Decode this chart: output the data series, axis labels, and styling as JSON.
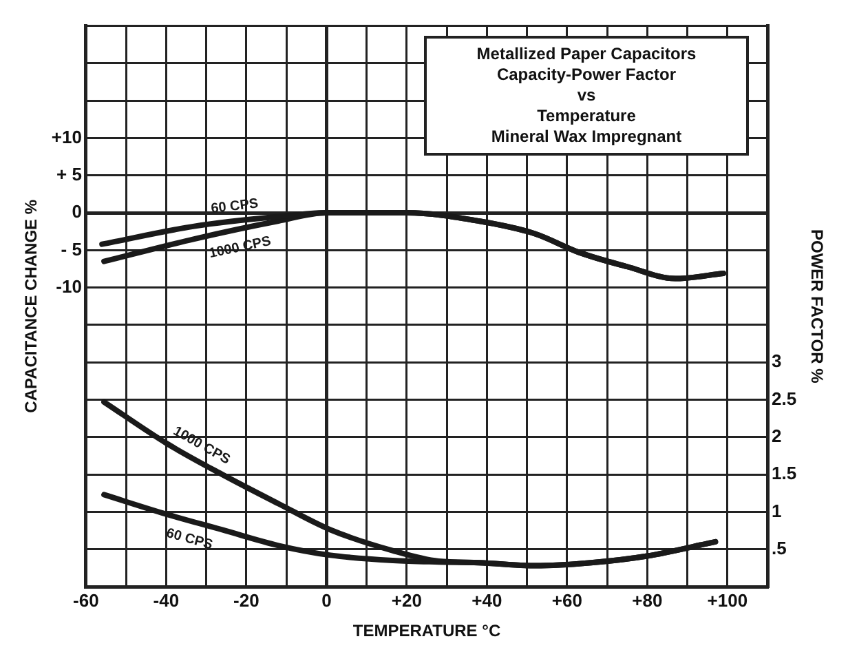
{
  "chart_data": {
    "type": "line",
    "title": "Metallized Paper Capacitors\nCapacity-Power Factor\nvs\nTemperature",
    "subtitle": "Mineral Wax Impregnant",
    "xlabel": "TEMPERATURE °C",
    "ylabel": "CAPACITANCE CHANGE %",
    "y2label": "POWER FACTOR %",
    "xlim": [
      -60,
      110
    ],
    "xticks": [
      -60,
      {
        "value": -50,
        "label": null
      },
      -40,
      {
        "value": -30,
        "label": null
      },
      -20,
      {
        "value": -10,
        "label": null
      },
      0,
      {
        "value": 10,
        "label": null
      },
      {
        "value": 20,
        "label": "+20"
      },
      {
        "value": 30,
        "label": null
      },
      {
        "value": 40,
        "label": "+40"
      },
      {
        "value": 50,
        "label": null
      },
      {
        "value": 60,
        "label": "+60"
      },
      {
        "value": 70,
        "label": null
      },
      {
        "value": 80,
        "label": "+80"
      },
      {
        "value": 90,
        "label": null
      },
      {
        "value": 100,
        "label": "+100"
      }
    ],
    "ylim": [
      -50,
      25
    ],
    "yticks": [
      {
        "value": -50,
        "label": null
      },
      {
        "value": -45,
        "label": null
      },
      {
        "value": -40,
        "label": null
      },
      {
        "value": -35,
        "label": null
      },
      {
        "value": -30,
        "label": null
      },
      {
        "value": -25,
        "label": null
      },
      {
        "value": -20,
        "label": null
      },
      {
        "value": -15,
        "label": null
      },
      -10,
      {
        "value": -5,
        "label": "- 5"
      },
      0,
      {
        "value": 5,
        "label": "+ 5"
      },
      {
        "value": 10,
        "label": "+10"
      },
      {
        "value": 15,
        "label": null
      },
      {
        "value": 20,
        "label": null
      },
      {
        "value": 25,
        "label": null
      }
    ],
    "y2lim": [
      0,
      7.5
    ],
    "y2ticks": [
      {
        "value": 0.5,
        "label": ".5"
      },
      1,
      1.5,
      2,
      2.5,
      3
    ],
    "grid": true,
    "marker": "none",
    "line_style": "solid",
    "series": [
      {
        "name": "60 CPS",
        "color": "#1a1a1a",
        "x": [
          -56,
          -33,
          -12,
          0,
          20,
          38,
          52,
          63,
          75,
          87,
          99
        ],
        "values": [
          -4.2,
          -1.8,
          -0.5,
          0,
          0,
          -1.1,
          -2.8,
          -5.3,
          -7.2,
          -8.8,
          -8.1
        ]
      },
      {
        "name": "1000 CPS",
        "color": "#1a1a1a",
        "x": [
          -55.5,
          -33,
          -12,
          0,
          20,
          38,
          52,
          63,
          75,
          87,
          99
        ],
        "values": [
          -6.5,
          -3.5,
          -1.1,
          0,
          0,
          -1.1,
          -2.8,
          -5.3,
          -7.2,
          -8.8,
          -8.1
        ]
      },
      {
        "name": "1000 CPS",
        "color": "#1a1a1a",
        "axis": "y2",
        "x": [
          -55.5,
          -40,
          -26,
          -12,
          1,
          16.6,
          28,
          38,
          52,
          66,
          80,
          97
        ],
        "values": [
          2.47,
          1.92,
          1.5,
          1.11,
          0.76,
          0.48,
          0.34,
          0.32,
          0.28,
          0.32,
          0.41,
          0.6
        ]
      },
      {
        "name": "60 CPS",
        "color": "#1a1a1a",
        "axis": "y2",
        "x": [
          -55.5,
          -40,
          -26,
          -12,
          1,
          16.6,
          28,
          38,
          52,
          66,
          80,
          97
        ],
        "values": [
          1.23,
          0.97,
          0.76,
          0.55,
          0.42,
          0.35,
          0.33,
          0.32,
          0.28,
          0.32,
          0.41,
          0.6
        ]
      }
    ]
  }
}
